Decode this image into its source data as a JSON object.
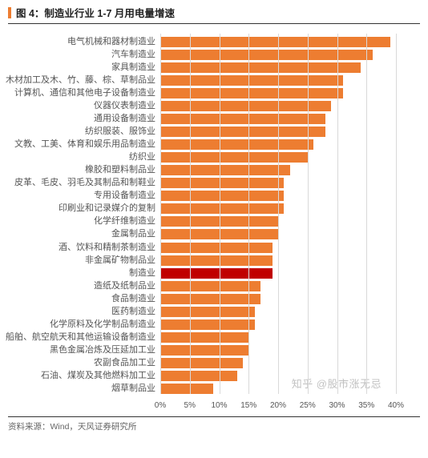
{
  "header": {
    "title": "图 4：制造业行业 1-7 月用电量增速"
  },
  "chart": {
    "type": "bar",
    "orientation": "horizontal",
    "x_axis": {
      "min": 0,
      "max": 40,
      "tick_step": 5,
      "tick_suffix": "%",
      "tick_fontsize": 10,
      "grid_color": "#d9d9d9"
    },
    "bar_color_default": "#ed7d31",
    "bar_color_highlight": "#c00000",
    "label_fontsize": 11,
    "label_color": "#555555",
    "background_color": "#ffffff",
    "items": [
      {
        "label": "电气机械和器材制造业",
        "value": 39
      },
      {
        "label": "汽车制造业",
        "value": 36
      },
      {
        "label": "家具制造业",
        "value": 34
      },
      {
        "label": "木材加工及木、竹、藤、棕、草制品业",
        "value": 31
      },
      {
        "label": "计算机、通信和其他电子设备制造业",
        "value": 31
      },
      {
        "label": "仪器仪表制造业",
        "value": 29
      },
      {
        "label": "通用设备制造业",
        "value": 28
      },
      {
        "label": "纺织服装、服饰业",
        "value": 28
      },
      {
        "label": "文教、工美、体育和娱乐用品制造业",
        "value": 26
      },
      {
        "label": "纺织业",
        "value": 25
      },
      {
        "label": "橡胶和塑料制品业",
        "value": 22
      },
      {
        "label": "皮革、毛皮、羽毛及其制品和制鞋业",
        "value": 21
      },
      {
        "label": "专用设备制造业",
        "value": 21
      },
      {
        "label": "印刷业和记录媒介的复制",
        "value": 21
      },
      {
        "label": "化学纤维制造业",
        "value": 20
      },
      {
        "label": "金属制品业",
        "value": 20
      },
      {
        "label": "酒、饮料和精制茶制造业",
        "value": 19
      },
      {
        "label": "非金属矿物制品业",
        "value": 19
      },
      {
        "label": "制造业",
        "value": 19,
        "highlight": true
      },
      {
        "label": "造纸及纸制品业",
        "value": 17
      },
      {
        "label": "食品制造业",
        "value": 17
      },
      {
        "label": "医药制造业",
        "value": 16
      },
      {
        "label": "化学原料及化学制品制造业",
        "value": 16
      },
      {
        "label": "铁路、船舶、航空航天和其他运输设备制造业",
        "value": 15
      },
      {
        "label": "黑色金属冶炼及压延加工业",
        "value": 15
      },
      {
        "label": "农副食品加工业",
        "value": 14
      },
      {
        "label": "石油、煤炭及其他燃料加工业",
        "value": 13
      },
      {
        "label": "烟草制品业",
        "value": 9
      }
    ]
  },
  "footer": {
    "source": "资料来源：Wind，天风证券研究所"
  },
  "watermark": "知乎 @股市涨无忌",
  "colors": {
    "accent": "#ed7d31",
    "title_text": "#222222",
    "rule": "#333333"
  }
}
